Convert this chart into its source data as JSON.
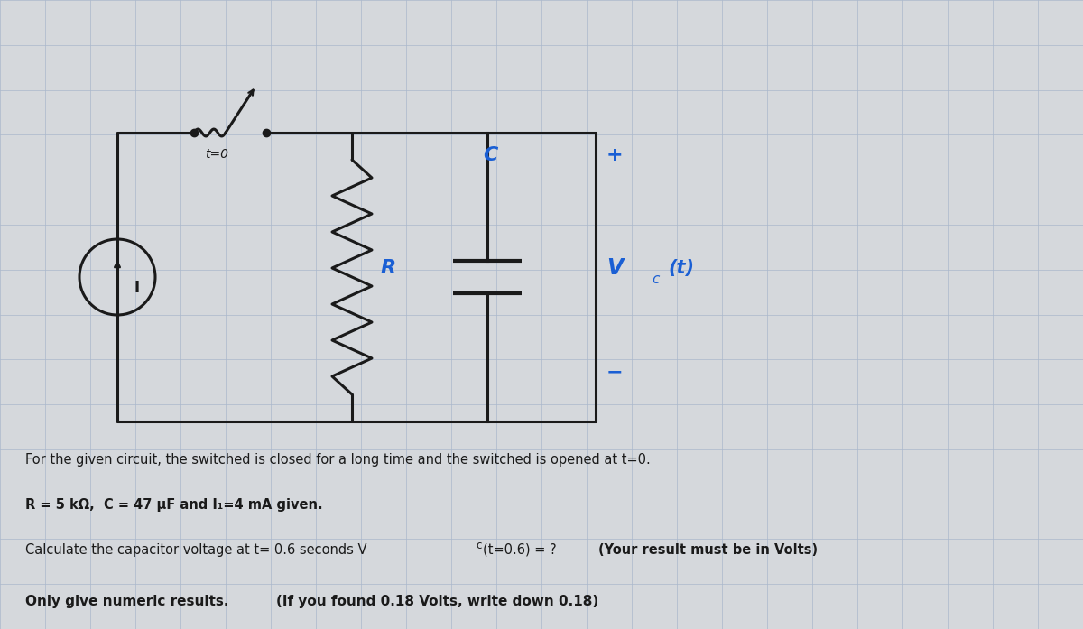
{
  "bg_color": "#d5d8dc",
  "grid_color": "#aab8cc",
  "circuit_color": "#1a1a1a",
  "blue_color": "#1a5fd4",
  "text_color": "#1a1a1a",
  "fig_width": 12.0,
  "fig_height": 6.97,
  "line1": "For the given circuit, the switched is closed for a long time and the switched is opened at t=0.",
  "line2": "R = 5 kΩ,  C = 47 µF and I₁=4 mA given.",
  "line3_part1": "Calculate the capacitor voltage at t= 0.6 seconds V",
  "line3_part2": "c",
  "line3_part3": "(t=0.6) = ?  ",
  "line3_part4": "(Your result must be in Volts)",
  "line4_part1": "Only give numeric results. ",
  "line4_part2": "(If you found 0.18 Volts, write down 0.18)",
  "t_label": "t=0"
}
